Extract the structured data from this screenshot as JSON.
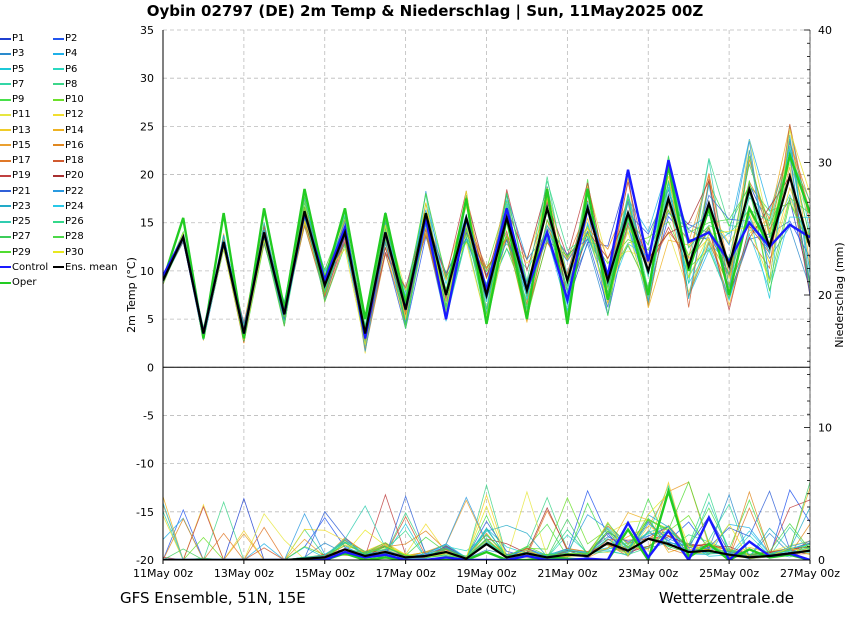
{
  "title": "Oybin 02797 (DE)  2m Temp & Niederschlag | Sun, 11May2025 00Z",
  "footer": {
    "left": "GFS Ensemble, 51N, 15E",
    "right": "Wetterzentrale.de"
  },
  "colors": {
    "control": "#1a1aff",
    "oper": "#22cc22",
    "mean": "#000000",
    "grid": "#bbbbbb"
  },
  "legend": [
    {
      "name": "P1",
      "color": "#1f3fcf"
    },
    {
      "name": "P2",
      "color": "#2255ee"
    },
    {
      "name": "P3",
      "color": "#2a8acc"
    },
    {
      "name": "P4",
      "color": "#1fb0e8"
    },
    {
      "name": "P5",
      "color": "#1cc8d8"
    },
    {
      "name": "P6",
      "color": "#2ad8c0"
    },
    {
      "name": "P7",
      "color": "#33d6a6"
    },
    {
      "name": "P8",
      "color": "#3dd68a"
    },
    {
      "name": "P9",
      "color": "#48e04a"
    },
    {
      "name": "P10",
      "color": "#6ce02a"
    },
    {
      "name": "P11",
      "color": "#e6e640"
    },
    {
      "name": "P12",
      "color": "#f2de30"
    },
    {
      "name": "P13",
      "color": "#f0cc28"
    },
    {
      "name": "P14",
      "color": "#eeb222"
    },
    {
      "name": "P15",
      "color": "#eaa030"
    },
    {
      "name": "P16",
      "color": "#e08820"
    },
    {
      "name": "P17",
      "color": "#e07828"
    },
    {
      "name": "P18",
      "color": "#d05a30"
    },
    {
      "name": "P19",
      "color": "#c04040"
    },
    {
      "name": "P20",
      "color": "#a83030"
    },
    {
      "name": "P21",
      "color": "#3060d8"
    },
    {
      "name": "P22",
      "color": "#2a9ae0"
    },
    {
      "name": "P23",
      "color": "#22aac8"
    },
    {
      "name": "P24",
      "color": "#28c8e8"
    },
    {
      "name": "P25",
      "color": "#30ccb0"
    },
    {
      "name": "P26",
      "color": "#34d88a"
    },
    {
      "name": "P27",
      "color": "#3ccc5a"
    },
    {
      "name": "P28",
      "color": "#4cd848"
    },
    {
      "name": "P29",
      "color": "#50dc30"
    },
    {
      "name": "P30",
      "color": "#e8e820"
    },
    {
      "name": "Control",
      "color": "#1a1aff"
    },
    {
      "name": "Ens. mean",
      "color": "#000000"
    },
    {
      "name": "Oper",
      "color": "#22cc22"
    }
  ],
  "chart_data": {
    "type": "line",
    "title": "Oybin 02797 (DE)  2m Temp & Niederschlag | Sun, 11May2025 00Z",
    "xlabel": "Date (UTC)",
    "ylabel": "2m Temp (°C)",
    "y2label": "Niederschlag (mm)",
    "ylim": [
      -20,
      35
    ],
    "y2lim": [
      0,
      40
    ],
    "xlim": [
      0,
      384
    ],
    "x_ticks": [
      {
        "h": 0,
        "label": "11May 00z"
      },
      {
        "h": 48,
        "label": "13May 00z"
      },
      {
        "h": 96,
        "label": "15May 00z"
      },
      {
        "h": 144,
        "label": "17May 00z"
      },
      {
        "h": 192,
        "label": "19May 00z"
      },
      {
        "h": 240,
        "label": "21May 00z"
      },
      {
        "h": 288,
        "label": "23May 00z"
      },
      {
        "h": 336,
        "label": "25May 00z"
      },
      {
        "h": 384,
        "label": "27May 00z"
      }
    ],
    "y_ticks": [
      35,
      30,
      25,
      20,
      15,
      10,
      5,
      0,
      -5,
      -10,
      -15,
      -20
    ],
    "y2_ticks": [
      40,
      30,
      20,
      10,
      0
    ],
    "grid": true,
    "legend_position": "left",
    "x": [
      0,
      12,
      24,
      36,
      48,
      60,
      72,
      84,
      96,
      108,
      120,
      132,
      144,
      156,
      168,
      180,
      192,
      204,
      216,
      228,
      240,
      252,
      264,
      276,
      288,
      300,
      312,
      324,
      336,
      348,
      360,
      372,
      384
    ],
    "series": [
      {
        "name": "Ens. mean",
        "axis": "temp",
        "color": "#000000",
        "values": [
          9,
          13.5,
          3.5,
          13,
          3.5,
          14,
          5.5,
          16.2,
          8.5,
          14,
          3.5,
          14,
          6,
          16,
          7.5,
          15.5,
          7.5,
          15.5,
          8,
          16.5,
          9,
          16.5,
          9,
          16,
          10,
          17.5,
          10.5,
          17,
          10.5,
          18.5,
          12.5,
          19.8,
          12.5
        ]
      },
      {
        "name": "Control",
        "axis": "temp",
        "color": "#1a1aff",
        "values": [
          9.5,
          13.5,
          3.5,
          13,
          3.5,
          14,
          5.5,
          16,
          9,
          14.5,
          3,
          14,
          6,
          15.5,
          5,
          15.5,
          8,
          16.5,
          8,
          14,
          7,
          16.5,
          9.5,
          20.5,
          11,
          21.5,
          13,
          14,
          11,
          15,
          12.5,
          14.8,
          13.5
        ]
      },
      {
        "name": "Oper",
        "axis": "temp",
        "color": "#22cc22",
        "values": [
          9,
          15.5,
          3,
          16,
          3,
          16.5,
          6,
          18.5,
          9,
          16.5,
          5,
          16,
          6.5,
          16,
          7.5,
          17.5,
          4.5,
          15.5,
          5,
          18.5,
          4.5,
          18.5,
          7,
          16,
          7.5,
          21,
          10,
          16.5,
          7.5,
          16.5,
          12.5,
          22,
          16
        ]
      },
      {
        "name": "Ens. mean",
        "axis": "precip",
        "color": "#000000",
        "values": [
          0,
          0,
          0,
          0,
          0,
          0,
          0,
          0.1,
          0.2,
          0.8,
          0.3,
          0.6,
          0.2,
          0.3,
          0.6,
          0.1,
          1.2,
          0.2,
          0.5,
          0.2,
          0.4,
          0.3,
          1.3,
          0.7,
          1.6,
          1.2,
          0.6,
          0.7,
          0.4,
          0.2,
          0.3,
          0.5,
          0.7
        ]
      },
      {
        "name": "Control",
        "axis": "precip",
        "color": "#1a1aff",
        "values": [
          0,
          0,
          0,
          0,
          0,
          0,
          0,
          0,
          0,
          0.6,
          0.2,
          0.4,
          0,
          0,
          0.2,
          0,
          0,
          0,
          0.3,
          0,
          0,
          0.1,
          0,
          2.8,
          0.2,
          2.2,
          0,
          3.2,
          0,
          1.4,
          0.3,
          0.5,
          0
        ]
      },
      {
        "name": "Oper",
        "axis": "precip",
        "color": "#22cc22",
        "values": [
          0,
          0,
          0,
          0,
          0,
          0,
          0,
          0,
          0,
          0.5,
          0,
          0.2,
          0,
          0,
          0,
          0,
          0.6,
          0,
          0,
          0.2,
          0.1,
          0,
          0,
          2.3,
          0,
          5.2,
          0.2,
          1.2,
          0,
          0.8,
          0.2,
          0.4,
          0
        ]
      }
    ]
  }
}
